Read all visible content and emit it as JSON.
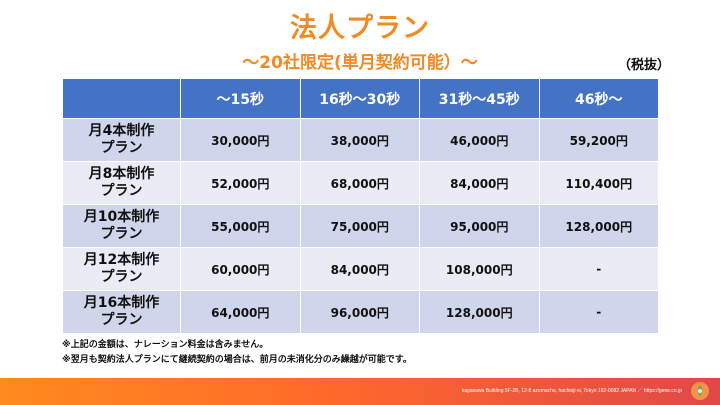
{
  "header": {
    "title": "法人プラン",
    "subtitle": "～20社限定(単月契約可能）～",
    "tax_note": "（税抜）"
  },
  "table": {
    "columns": [
      "",
      "～15秒",
      "16秒～30秒",
      "31秒～45秒",
      "46秒～"
    ],
    "rows": [
      {
        "plan_line1": "月4本制作",
        "plan_line2": "プラン",
        "prices": [
          "30,000円",
          "38,000円",
          "46,000円",
          "59,200円"
        ]
      },
      {
        "plan_line1": "月8本制作",
        "plan_line2": "プラン",
        "prices": [
          "52,000円",
          "68,000円",
          "84,000円",
          "110,400円"
        ]
      },
      {
        "plan_line1": "月10本制作",
        "plan_line2": "プラン",
        "prices": [
          "55,000円",
          "75,000円",
          "95,000円",
          "128,000円"
        ]
      },
      {
        "plan_line1": "月12本制作",
        "plan_line2": "プラン",
        "prices": [
          "60,000円",
          "84,000円",
          "108,000円",
          "-"
        ]
      },
      {
        "plan_line1": "月16本制作",
        "plan_line2": "プラン",
        "prices": [
          "64,000円",
          "96,000円",
          "128,000円",
          "-"
        ]
      }
    ]
  },
  "notes": [
    "※上記の金額は、ナレーション料金は含みません。",
    "※翌月も契約法人プランにて継続契約の場合は、前月の未消化分のみ繰越が可能です。"
  ],
  "footer": {
    "address": "kagasawa Building 5F-2B, 12-8 azumacho, hachioji-si, Tokyo 192-0082 JAPAN ／ https://gene.co.jp",
    "logo_icon": "company-logo-icon",
    "colors": {
      "accent": "#f08a24",
      "header_bg": "#4472c4",
      "row_dark": "#cfd5ea",
      "row_light": "#e9ebf5"
    }
  }
}
